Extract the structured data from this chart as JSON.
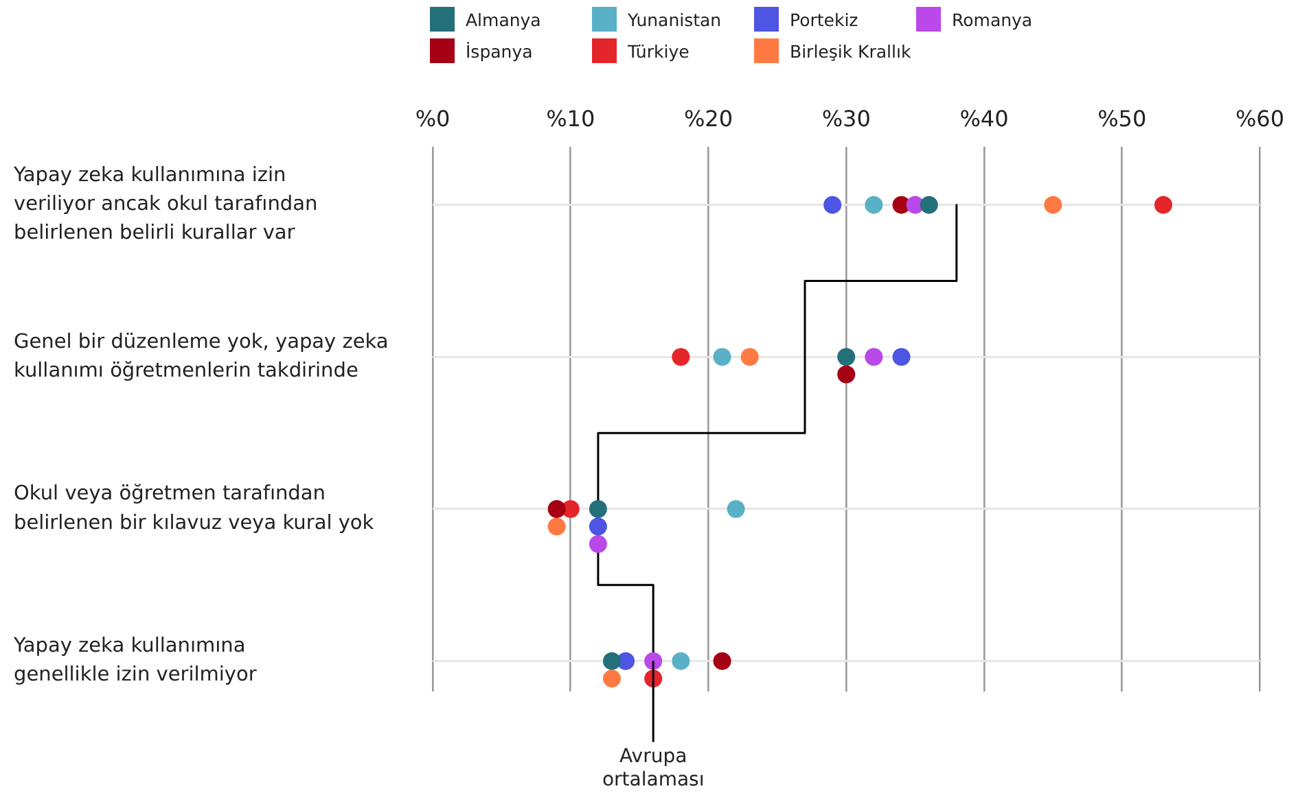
{
  "chart_data": {
    "type": "scatter",
    "orientation": "horizontal",
    "categories": [
      "Yapay zeka kullanımına izin\nveriliyor ancak okul tarafından\nbelirlenen belirli kurallar var",
      "Genel bir düzenleme yok, yapay zeka\nkullanımı öğretmenlerin takdirinde",
      "Okul veya öğretmen tarafından\nbelirlenen bir kılavuz veya kural yok",
      "Yapay zeka kullanımına\ngenellikle izin verilmiyor"
    ],
    "series": [
      {
        "name": "Almanya",
        "color": "#23707a",
        "values": [
          36,
          30,
          12,
          13
        ]
      },
      {
        "name": "Yunanistan",
        "color": "#5ab0c6",
        "values": [
          32,
          21,
          22,
          18
        ]
      },
      {
        "name": "Portekiz",
        "color": "#4d55e2",
        "values": [
          29,
          34,
          12,
          14
        ]
      },
      {
        "name": "Romanya",
        "color": "#bb48e8",
        "values": [
          35,
          32,
          12,
          16
        ]
      },
      {
        "name": "İspanya",
        "color": "#a50013",
        "values": [
          34,
          30,
          9,
          21
        ]
      },
      {
        "name": "Türkiye",
        "color": "#e4252a",
        "values": [
          53,
          18,
          10,
          16
        ]
      },
      {
        "name": "Birleşik Krallık",
        "color": "#ff7a42",
        "values": [
          45,
          23,
          9,
          13
        ]
      },
      {
        "name": "Avrupa ortalaması",
        "type": "step",
        "color": "#000000",
        "marker": "none",
        "values": [
          38,
          27,
          12,
          16
        ]
      }
    ],
    "xlim": [
      0,
      60
    ],
    "xticks": [
      {
        "value": 0,
        "label": "%0"
      },
      {
        "value": 10,
        "label": "%10"
      },
      {
        "value": 20,
        "label": "%20"
      },
      {
        "value": 30,
        "label": "%30"
      },
      {
        "value": 40,
        "label": "%40"
      },
      {
        "value": 50,
        "label": "%50"
      },
      {
        "value": 60,
        "label": "%60"
      }
    ],
    "grid": true,
    "legend": "top",
    "marker": "circle"
  }
}
